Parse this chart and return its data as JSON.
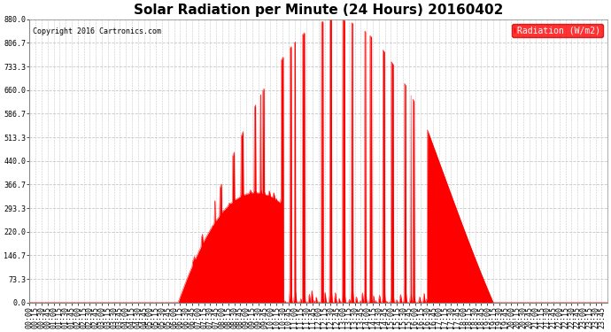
{
  "title": "Solar Radiation per Minute (24 Hours) 20160402",
  "copyright_text": "Copyright 2016 Cartronics.com",
  "legend_label": "Radiation (W/m2)",
  "background_color": "#ffffff",
  "plot_bg_color": "#ffffff",
  "line_color": "#ff0000",
  "fill_color": "#ff0000",
  "grid_color": "#c8c8c8",
  "grid_style": "--",
  "ylim": [
    0.0,
    880.0
  ],
  "yticks": [
    0.0,
    73.3,
    146.7,
    220.0,
    293.3,
    366.7,
    440.0,
    513.3,
    586.7,
    660.0,
    733.3,
    806.7,
    880.0
  ],
  "title_fontsize": 11,
  "tick_fontsize": 6,
  "xlabel_rotation": 90,
  "total_minutes": 1440,
  "x_tick_interval": 15,
  "sunrise_minute": 370,
  "sunset_minute": 1155,
  "solar_noon": 760,
  "peak_radiation": 880.0
}
